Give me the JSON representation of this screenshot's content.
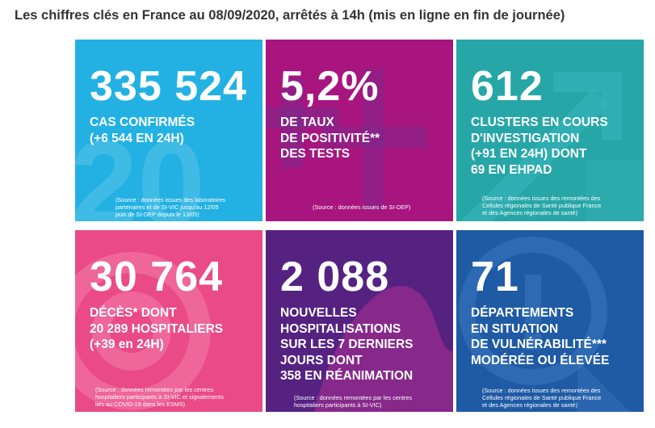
{
  "page": {
    "title": "Les chiffres clés en France au 08/09/2020, arrêtés à 14h (mis en ligne en fin de journée)"
  },
  "colors": {
    "cases": "#23b1e3",
    "positivity": "#a8157f",
    "clusters": "#27a6a8",
    "deaths": "#ea4a86",
    "hospitalisations": "#552282",
    "departments": "#1f5aa5"
  },
  "tiles": {
    "cases": {
      "value": "335 524",
      "lines": [
        "CAS CONFIRMÉS",
        "(+6 544 EN 24H)"
      ],
      "source": [
        "(Source : données issues des laboratoires",
        "partenaires et de SI-VIC jusqu'au 12/05",
        "puis de SI-DEP depuis le 13/05)"
      ]
    },
    "positivity": {
      "value": "5,2%",
      "lines": [
        "DE TAUX",
        "DE POSITIVITÉ**",
        "DES TESTS"
      ],
      "source": [
        "(Source : données issues de SI-DEP)"
      ]
    },
    "clusters": {
      "value": "612",
      "lines": [
        "CLUSTERS EN COURS",
        "D'INVESTIGATION",
        "(+91 EN 24H) DONT",
        "69 EN EHPAD"
      ],
      "source": [
        "(Source : données issues des remontées des",
        "Cellules régionales de Santé publique France",
        "et des Agences régionales de santé)"
      ]
    },
    "deaths": {
      "value": "30 764",
      "lines": [
        "DÉCÈS* DONT",
        "20 289 HOSPITALIERS",
        "(+39 en 24H)"
      ],
      "source": [
        "(Source : données remontées par les centres",
        "hospitaliers participants à SI-VIC et signalements",
        "liés au COVID-19 dans les ESMS)"
      ]
    },
    "hospitalisations": {
      "value": "2 088",
      "lines": [
        "NOUVELLES",
        "HOSPITALISATIONS",
        "SUR LES 7 DERNIERS",
        "JOURS DONT",
        "358 EN RÉANIMATION"
      ],
      "source": [
        "(Source : données remontées par les centres",
        "hospitaliers participants à SI-VIC)"
      ]
    },
    "departments": {
      "value": "71",
      "lines": [
        "DÉPARTEMENTS",
        "EN SITUATION",
        "DE VULNÉRABILITÉ***",
        "MODÉRÉE OU ÉLEVÉE"
      ],
      "source": [
        "(Source : données issues des remontées des",
        "Cellules régionales de Santé publique France",
        "et des Agences régionales de santé)"
      ]
    }
  }
}
